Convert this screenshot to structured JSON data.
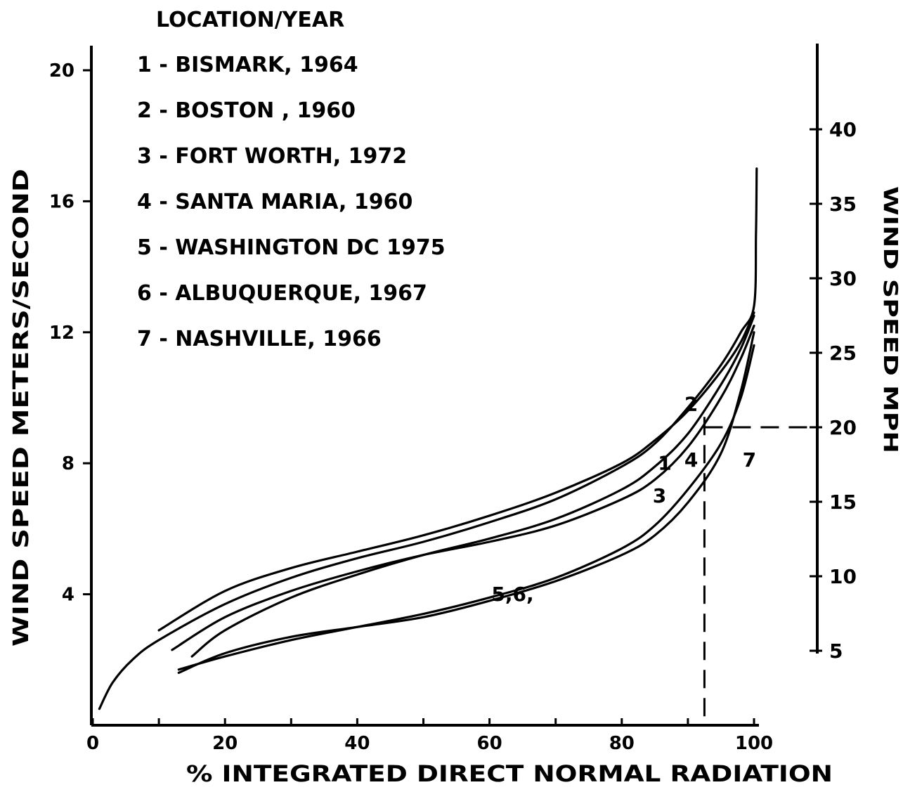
{
  "chart_data": {
    "type": "line",
    "title": "LOCATION/YEAR",
    "xlabel": "% INTEGRATED DIRECT NORMAL RADIATION",
    "ylabel": "WIND SPEED METERS/SECOND",
    "ylabel_right": "WIND SPEED MPH",
    "xlim": [
      0,
      100
    ],
    "ylim": [
      0,
      21
    ],
    "ylim_right": [
      0,
      47
    ],
    "xticks": [
      0,
      10,
      20,
      30,
      40,
      50,
      60,
      70,
      80,
      90,
      100
    ],
    "xtick_labels": [
      {
        "x": 0,
        "label": "0"
      },
      {
        "x": 20,
        "label": "20"
      },
      {
        "x": 40,
        "label": "40"
      },
      {
        "x": 60,
        "label": "60"
      },
      {
        "x": 80,
        "label": "80"
      },
      {
        "x": 100,
        "label": "100"
      }
    ],
    "yticks_left": [
      {
        "y": 4,
        "label": "4"
      },
      {
        "y": 8,
        "label": "8"
      },
      {
        "y": 12,
        "label": "12"
      },
      {
        "y": 16,
        "label": "16"
      },
      {
        "y": 20,
        "label": "20"
      }
    ],
    "yticks_right": [
      {
        "y": 5,
        "label": "5"
      },
      {
        "y": 10,
        "label": "10"
      },
      {
        "y": 15,
        "label": "15"
      },
      {
        "y": 20,
        "label": "20"
      },
      {
        "y": 25,
        "label": "25"
      },
      {
        "y": 30,
        "label": "30"
      },
      {
        "y": 35,
        "label": "35"
      },
      {
        "y": 40,
        "label": "40"
      }
    ],
    "legend": [
      "1 - BISMARK, 1964",
      "2 - BOSTON , 1960",
      "3 - FORT WORTH, 1972",
      "4 - SANTA MARIA, 1960",
      "5 - WASHINGTON DC 1975",
      "6 - ALBUQUERQUE, 1967",
      "7 - NASHVILLE, 1966"
    ],
    "legend_position": "top-left",
    "series": [
      {
        "name": "1",
        "points": [
          [
            1,
            0.5
          ],
          [
            3,
            1.3
          ],
          [
            6,
            2.0
          ],
          [
            10,
            2.6
          ],
          [
            20,
            3.7
          ],
          [
            30,
            4.5
          ],
          [
            40,
            5.1
          ],
          [
            50,
            5.6
          ],
          [
            60,
            6.2
          ],
          [
            70,
            6.9
          ],
          [
            80,
            7.9
          ],
          [
            85,
            8.6
          ],
          [
            90,
            9.7
          ],
          [
            95,
            11.0
          ],
          [
            98,
            12.0
          ],
          [
            100,
            12.8
          ],
          [
            100.3,
            15.0
          ],
          [
            100.4,
            17.0
          ]
        ]
      },
      {
        "name": "2",
        "points": [
          [
            10,
            2.9
          ],
          [
            20,
            4.1
          ],
          [
            30,
            4.8
          ],
          [
            40,
            5.3
          ],
          [
            50,
            5.8
          ],
          [
            60,
            6.4
          ],
          [
            70,
            7.1
          ],
          [
            80,
            8.0
          ],
          [
            85,
            8.7
          ],
          [
            90,
            9.6
          ],
          [
            95,
            10.8
          ],
          [
            98,
            11.7
          ],
          [
            100,
            12.6
          ]
        ]
      },
      {
        "name": "3",
        "points": [
          [
            12,
            2.3
          ],
          [
            20,
            3.3
          ],
          [
            30,
            4.1
          ],
          [
            40,
            4.7
          ],
          [
            50,
            5.2
          ],
          [
            60,
            5.6
          ],
          [
            70,
            6.1
          ],
          [
            80,
            6.9
          ],
          [
            85,
            7.5
          ],
          [
            90,
            8.5
          ],
          [
            95,
            10.0
          ],
          [
            98,
            11.2
          ],
          [
            100,
            12.2
          ]
        ]
      },
      {
        "name": "4",
        "points": [
          [
            15,
            2.1
          ],
          [
            20,
            2.9
          ],
          [
            30,
            3.9
          ],
          [
            40,
            4.6
          ],
          [
            50,
            5.2
          ],
          [
            60,
            5.7
          ],
          [
            70,
            6.3
          ],
          [
            80,
            7.2
          ],
          [
            85,
            7.9
          ],
          [
            90,
            8.9
          ],
          [
            95,
            10.4
          ],
          [
            98,
            11.5
          ],
          [
            100,
            12.5
          ]
        ]
      },
      {
        "name": "5,6",
        "points": [
          [
            13,
            1.6
          ],
          [
            20,
            2.2
          ],
          [
            30,
            2.7
          ],
          [
            40,
            3.0
          ],
          [
            50,
            3.3
          ],
          [
            60,
            3.8
          ],
          [
            70,
            4.4
          ],
          [
            80,
            5.2
          ],
          [
            85,
            5.8
          ],
          [
            90,
            6.8
          ],
          [
            95,
            8.3
          ],
          [
            98,
            10.2
          ],
          [
            100,
            12.0
          ]
        ]
      },
      {
        "name": "7",
        "points": [
          [
            13,
            1.7
          ],
          [
            20,
            2.1
          ],
          [
            30,
            2.6
          ],
          [
            40,
            3.0
          ],
          [
            50,
            3.4
          ],
          [
            60,
            3.9
          ],
          [
            70,
            4.5
          ],
          [
            80,
            5.4
          ],
          [
            85,
            6.1
          ],
          [
            90,
            7.2
          ],
          [
            95,
            8.6
          ],
          [
            98,
            10.0
          ],
          [
            100,
            11.6
          ]
        ]
      }
    ],
    "curve_labels": [
      {
        "text": "2",
        "x": 90.5,
        "y": 9.6
      },
      {
        "text": "1",
        "x": 86.5,
        "y": 7.8
      },
      {
        "text": "4",
        "x": 90.5,
        "y": 7.9
      },
      {
        "text": "3",
        "x": 85.7,
        "y": 6.8
      },
      {
        "text": "7",
        "x": 99.3,
        "y": 7.9
      },
      {
        "text": "5,6,",
        "x": 63.5,
        "y": 3.8
      }
    ],
    "annotations": {
      "reference_x": 92.5,
      "reference_y_ms": 9.2,
      "reference_y_mph": 20
    }
  }
}
